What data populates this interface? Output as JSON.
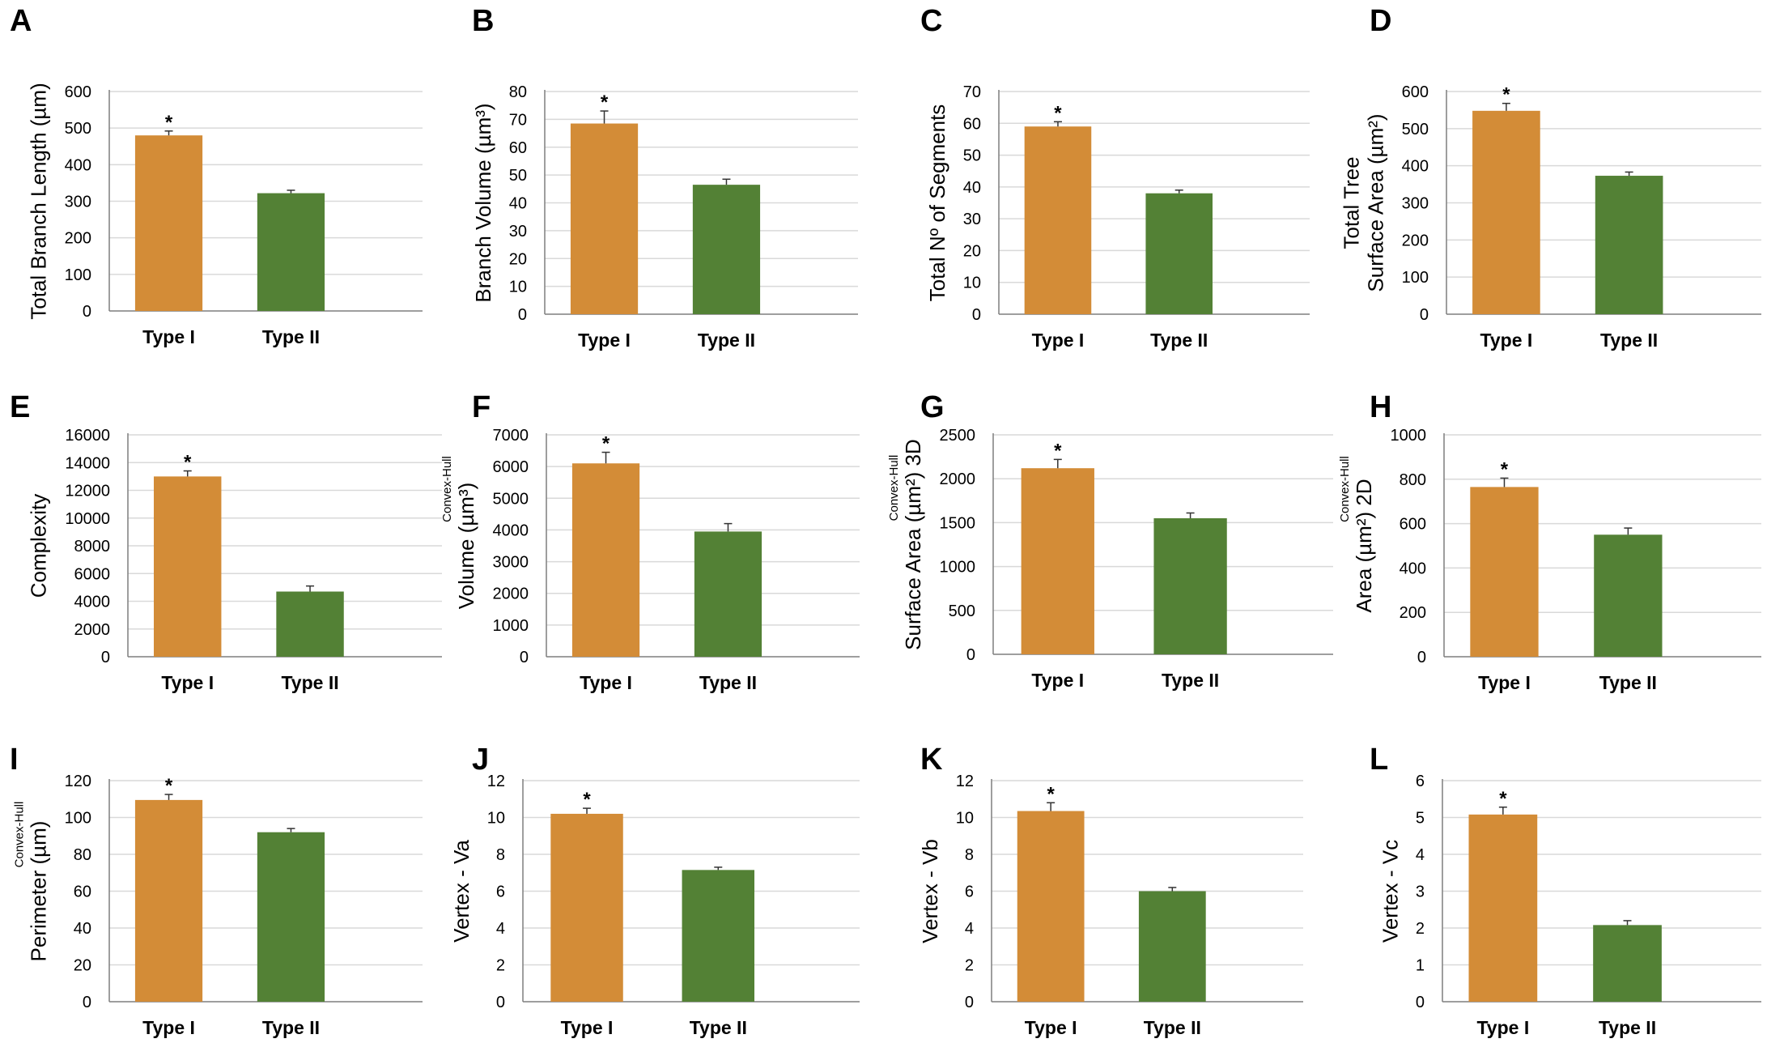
{
  "figure": {
    "colors": {
      "type_i": "#D38C37",
      "type_ii": "#538135",
      "axis": "#7f7f7f",
      "grid": "#d9d9d9",
      "text": "#000000"
    },
    "significance_marker": "*"
  },
  "chart_data": [
    {
      "panel": "A",
      "type": "bar",
      "categories": [
        "Type I",
        "Type II"
      ],
      "values": [
        480,
        322
      ],
      "errors": [
        12,
        8
      ],
      "ylabel": "Total Branch Length (µm)",
      "ylabel_prefix": "",
      "ylim": [
        0,
        600
      ],
      "ticks": [
        0,
        100,
        200,
        300,
        400,
        500,
        600
      ],
      "significant": [
        true,
        false
      ]
    },
    {
      "panel": "B",
      "type": "bar",
      "categories": [
        "Type I",
        "Type II"
      ],
      "values": [
        68.5,
        46.5
      ],
      "errors": [
        4.5,
        2
      ],
      "ylabel": "Branch Volume (µm³)",
      "ylabel_prefix": "",
      "ylim": [
        0,
        80
      ],
      "ticks": [
        0,
        10,
        20,
        30,
        40,
        50,
        60,
        70,
        80
      ],
      "significant": [
        true,
        false
      ]
    },
    {
      "panel": "C",
      "type": "bar",
      "categories": [
        "Type I",
        "Type II"
      ],
      "values": [
        59,
        38
      ],
      "errors": [
        1.5,
        1
      ],
      "ylabel": "Total Nº of Segments",
      "ylabel_prefix": "",
      "ylim": [
        0,
        70
      ],
      "ticks": [
        0,
        10,
        20,
        30,
        40,
        50,
        60,
        70
      ],
      "significant": [
        true,
        false
      ]
    },
    {
      "panel": "D",
      "type": "bar",
      "categories": [
        "Type I",
        "Type II"
      ],
      "values": [
        548,
        373
      ],
      "errors": [
        20,
        10
      ],
      "ylabel": [
        "Total Tree",
        "Surface Area (µm²)"
      ],
      "ylabel_prefix": "",
      "ylim": [
        0,
        600
      ],
      "ticks": [
        0,
        100,
        200,
        300,
        400,
        500,
        600
      ],
      "significant": [
        true,
        false
      ]
    },
    {
      "panel": "E",
      "type": "bar",
      "categories": [
        "Type I",
        "Type II"
      ],
      "values": [
        13000,
        4700
      ],
      "errors": [
        400,
        400
      ],
      "ylabel": "Complexity",
      "ylabel_prefix": "",
      "ylim": [
        0,
        16000
      ],
      "ticks": [
        0,
        2000,
        4000,
        6000,
        8000,
        10000,
        12000,
        14000,
        16000
      ],
      "significant": [
        true,
        false
      ]
    },
    {
      "panel": "F",
      "type": "bar",
      "categories": [
        "Type I",
        "Type II"
      ],
      "values": [
        6100,
        3950
      ],
      "errors": [
        350,
        250
      ],
      "ylabel": "Volume (µm³)",
      "ylabel_prefix": "Convex-Hull",
      "ylim": [
        0,
        7000
      ],
      "ticks": [
        0,
        1000,
        2000,
        3000,
        4000,
        5000,
        6000,
        7000
      ],
      "significant": [
        true,
        false
      ]
    },
    {
      "panel": "G",
      "type": "bar",
      "categories": [
        "Type I",
        "Type II"
      ],
      "values": [
        2120,
        1550
      ],
      "errors": [
        100,
        60
      ],
      "ylabel": "Surface Area (µm²) 3D",
      "ylabel_prefix": "Convex-Hull",
      "ylim": [
        0,
        2500
      ],
      "ticks": [
        0,
        500,
        1000,
        1500,
        2000,
        2500
      ],
      "significant": [
        true,
        false
      ]
    },
    {
      "panel": "H",
      "type": "bar",
      "categories": [
        "Type I",
        "Type II"
      ],
      "values": [
        765,
        550
      ],
      "errors": [
        40,
        30
      ],
      "ylabel": "Area (µm²) 2D",
      "ylabel_prefix": "Convex-Hull",
      "ylim": [
        0,
        1000
      ],
      "ticks": [
        0,
        200,
        400,
        600,
        800,
        1000
      ],
      "significant": [
        true,
        false
      ]
    },
    {
      "panel": "I",
      "type": "bar",
      "categories": [
        "Type I",
        "Type II"
      ],
      "values": [
        109.5,
        92
      ],
      "errors": [
        3,
        2
      ],
      "ylabel": "Perimeter (µm)",
      "ylabel_prefix": "Convex-Hull",
      "ylim": [
        0,
        120
      ],
      "ticks": [
        0,
        20,
        40,
        60,
        80,
        100,
        120
      ],
      "significant": [
        true,
        false
      ]
    },
    {
      "panel": "J",
      "type": "bar",
      "categories": [
        "Type I",
        "Type II"
      ],
      "values": [
        10.2,
        7.15
      ],
      "errors": [
        0.3,
        0.15
      ],
      "ylabel": "Vertex - Va",
      "ylabel_prefix": "",
      "ylim": [
        0,
        12
      ],
      "ticks": [
        0,
        2,
        4,
        6,
        8,
        10,
        12
      ],
      "significant": [
        true,
        false
      ]
    },
    {
      "panel": "K",
      "type": "bar",
      "categories": [
        "Type I",
        "Type II"
      ],
      "values": [
        10.35,
        6.0
      ],
      "errors": [
        0.45,
        0.2
      ],
      "ylabel": "Vertex - Vb",
      "ylabel_prefix": "",
      "ylim": [
        0,
        12
      ],
      "ticks": [
        0,
        2,
        4,
        6,
        8,
        10,
        12
      ],
      "significant": [
        true,
        false
      ]
    },
    {
      "panel": "L",
      "type": "bar",
      "categories": [
        "Type I",
        "Type II"
      ],
      "values": [
        5.08,
        2.08
      ],
      "errors": [
        0.2,
        0.12
      ],
      "ylabel": "Vertex - Vc",
      "ylabel_prefix": "",
      "ylim": [
        0,
        6
      ],
      "ticks": [
        0,
        1,
        2,
        3,
        4,
        5,
        6
      ],
      "significant": [
        true,
        false
      ]
    }
  ]
}
